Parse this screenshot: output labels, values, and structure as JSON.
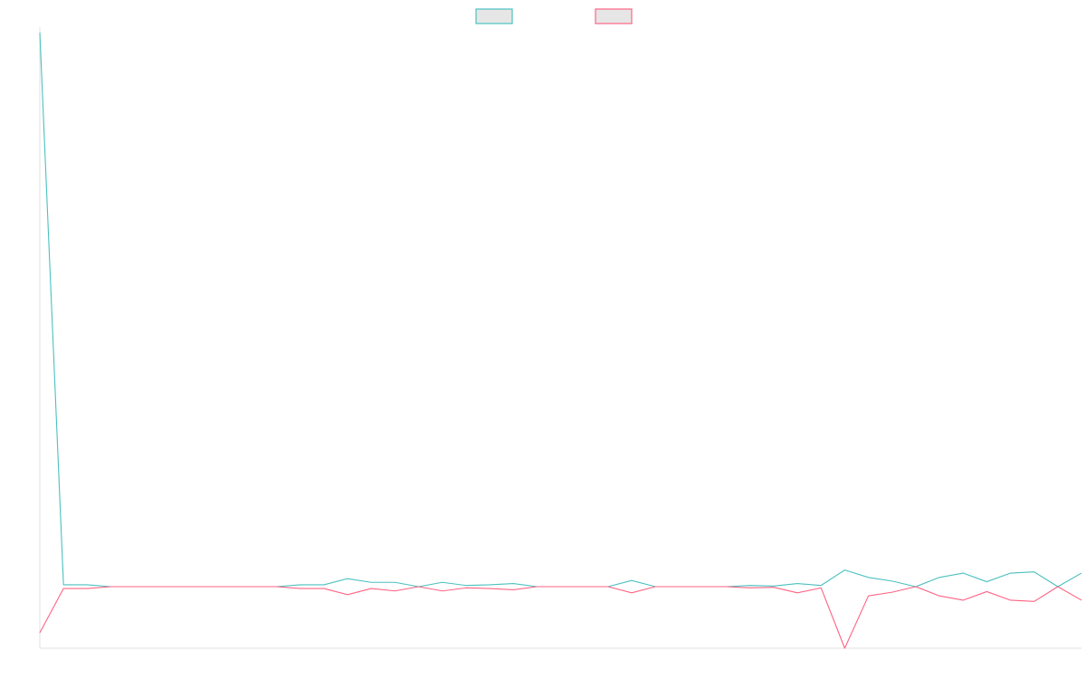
{
  "chart_data": {
    "type": "line",
    "title": "",
    "xlabel": "",
    "ylabel": "",
    "grid": false,
    "legend_position": "top-center",
    "ylim": [
      -1,
      9
    ],
    "x": [
      0,
      1,
      2,
      3,
      4,
      5,
      6,
      7,
      8,
      9,
      10,
      11,
      12,
      13,
      14,
      15,
      16,
      17,
      18,
      19,
      20,
      21,
      22,
      23,
      24,
      25,
      26,
      27,
      28,
      29,
      30,
      31,
      32,
      33,
      34,
      35,
      36,
      37,
      38,
      39,
      40,
      41,
      42,
      43,
      44
    ],
    "series": [
      {
        "name": "",
        "color": "#4bc0c0",
        "values": [
          9,
          0.03,
          0.03,
          0,
          0,
          0,
          0,
          0,
          0,
          0,
          0,
          0.03,
          0.03,
          0.13,
          0.07,
          0.07,
          0,
          0.07,
          0.02,
          0.03,
          0.05,
          0,
          0,
          0,
          0,
          0.1,
          0,
          0,
          0,
          0,
          0.02,
          0.01,
          0.05,
          0.02,
          0.27,
          0.15,
          0.09,
          0,
          0.15,
          0.22,
          0.08,
          0.22,
          0.24,
          0,
          0.22
        ]
      },
      {
        "name": "",
        "color": "#ff6384",
        "values": [
          -0.75,
          -0.03,
          -0.03,
          0,
          0,
          0,
          0,
          0,
          0,
          0,
          0,
          -0.03,
          -0.03,
          -0.13,
          -0.03,
          -0.07,
          0,
          -0.07,
          -0.02,
          -0.03,
          -0.05,
          0,
          0,
          0,
          0,
          -0.1,
          0,
          0,
          0,
          0,
          -0.02,
          -0.01,
          -0.1,
          -0.02,
          -1,
          -0.15,
          -0.09,
          0,
          -0.15,
          -0.22,
          -0.08,
          -0.22,
          -0.24,
          0,
          -0.22
        ]
      }
    ]
  }
}
